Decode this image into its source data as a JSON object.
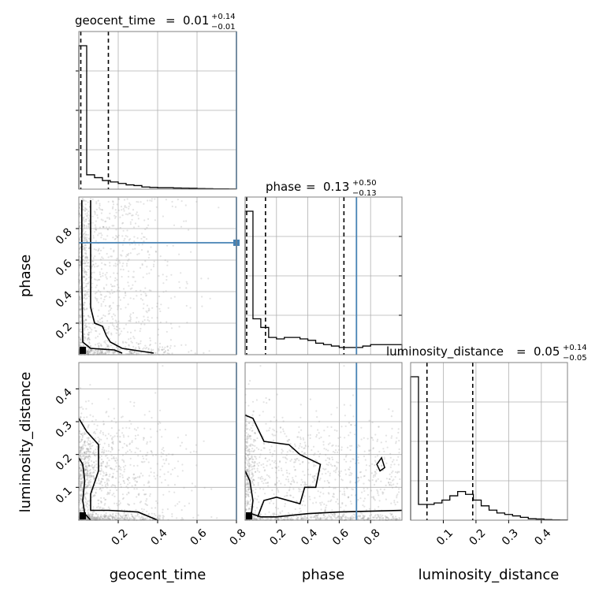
{
  "chart_data": {
    "type": "corner",
    "parameters": [
      {
        "key": "geocent_time",
        "label": "geocent_time",
        "title_label": "geocent_time",
        "title_value": "0.01",
        "title_plus": "+0.14",
        "title_minus": "−0.01",
        "range": [
          0.0,
          0.8
        ],
        "ticks": [
          0.2,
          0.4,
          0.6,
          0.8
        ],
        "tick_labels": [
          "0.2",
          "0.4",
          "0.6",
          "0.8"
        ],
        "quantiles": [
          0.01,
          0.15
        ],
        "truth": 0.8,
        "hist": {
          "edges": [
            0.0,
            0.04,
            0.08,
            0.12,
            0.16,
            0.2,
            0.24,
            0.28,
            0.32,
            0.36,
            0.4,
            0.44,
            0.48,
            0.52,
            0.56,
            0.6,
            0.64,
            0.68,
            0.72,
            0.76,
            0.8
          ],
          "counts": [
            1.0,
            0.1,
            0.08,
            0.06,
            0.05,
            0.04,
            0.03,
            0.025,
            0.015,
            0.012,
            0.01,
            0.01,
            0.008,
            0.007,
            0.006,
            0.004,
            0.003,
            0.002,
            0.002,
            0.001
          ]
        }
      },
      {
        "key": "phase",
        "label": "phase",
        "title_label": "phase",
        "title_value": "0.13",
        "title_plus": "+0.50",
        "title_minus": "−0.13",
        "range": [
          0.0,
          1.0
        ],
        "ticks": [
          0.2,
          0.4,
          0.6,
          0.8
        ],
        "tick_labels": [
          "0.2",
          "0.4",
          "0.6",
          "0.8"
        ],
        "quantiles": [
          0.01,
          0.13,
          0.63
        ],
        "truth": 0.71,
        "hist": {
          "edges": [
            0.0,
            0.05,
            0.1,
            0.15,
            0.2,
            0.25,
            0.3,
            0.35,
            0.4,
            0.45,
            0.5,
            0.55,
            0.6,
            0.65,
            0.7,
            0.75,
            0.8,
            0.85,
            0.9,
            0.95,
            1.0
          ],
          "counts": [
            1.0,
            0.25,
            0.19,
            0.12,
            0.11,
            0.12,
            0.12,
            0.11,
            0.1,
            0.08,
            0.07,
            0.06,
            0.05,
            0.05,
            0.05,
            0.06,
            0.07,
            0.07,
            0.07,
            0.07
          ]
        }
      },
      {
        "key": "luminosity_distance",
        "label": "luminosity_distance",
        "title_label": "luminosity_distance",
        "title_value": "0.05",
        "title_plus": "+0.14",
        "title_minus": "−0.05",
        "range": [
          0.0,
          0.48
        ],
        "ticks": [
          0.1,
          0.2,
          0.3,
          0.4
        ],
        "tick_labels": [
          "0.1",
          "0.2",
          "0.3",
          "0.4"
        ],
        "y_ticks": [
          0.1,
          0.2,
          0.3,
          0.4
        ],
        "y_tick_labels": [
          "0.1",
          "0.2",
          "0.3",
          "0.4"
        ],
        "quantiles": [
          0.05,
          0.19
        ],
        "hist": {
          "edges": [
            0.0,
            0.024,
            0.048,
            0.072,
            0.096,
            0.12,
            0.144,
            0.168,
            0.192,
            0.216,
            0.24,
            0.264,
            0.288,
            0.312,
            0.336,
            0.36,
            0.384,
            0.408,
            0.432,
            0.456,
            0.48
          ],
          "counts": [
            1.0,
            0.11,
            0.11,
            0.12,
            0.14,
            0.17,
            0.2,
            0.18,
            0.14,
            0.1,
            0.07,
            0.05,
            0.04,
            0.03,
            0.02,
            0.01,
            0.008,
            0.004,
            0.002,
            0.001
          ]
        }
      }
    ],
    "phase_y_ticks": [
      0.2,
      0.4,
      0.6,
      0.8
    ],
    "phase_y_tick_labels": [
      "0.2",
      "0.4",
      "0.6",
      "0.8"
    ],
    "truth_point": {
      "geocent_time": 0.8,
      "phase": 0.71
    },
    "colors": {
      "truth": "#4682b4",
      "lines": "#000000",
      "samples": "#9a9a9a",
      "grid": "#b0b0b0"
    },
    "grid": true
  }
}
